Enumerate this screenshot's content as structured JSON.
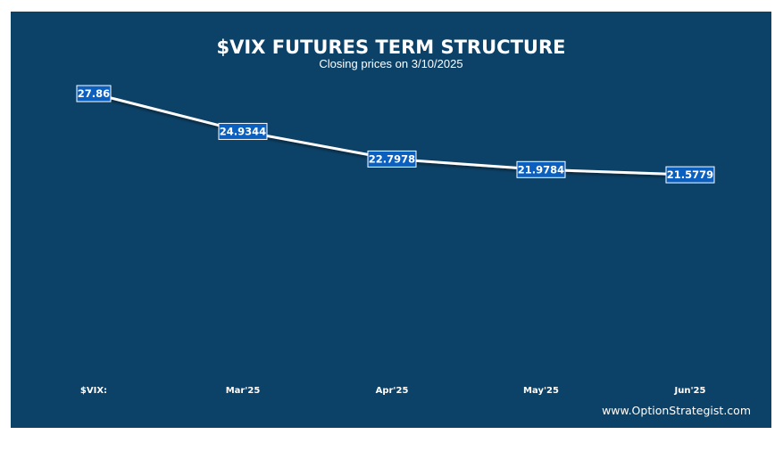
{
  "chart_data": {
    "type": "line",
    "title": "$VIX FUTURES TERM STRUCTURE",
    "subtitle": "Closing prices on 3/10/2025",
    "categories": [
      "$VIX:",
      "Mar'25",
      "Apr'25",
      "May'25",
      "Jun'25"
    ],
    "series": [
      {
        "values": [
          27.86,
          24.9344,
          22.7978,
          21.9784,
          21.5779
        ],
        "value_labels": [
          "27.86",
          "24.9344",
          "22.7978",
          "21.9784",
          "21.5779"
        ]
      }
    ],
    "data_labels": true,
    "grid": false,
    "legend": "none",
    "drop_lines": true
  },
  "footer": {
    "website": "www.OptionStrategist.com"
  },
  "colors": {
    "background": "#0d4268",
    "line": "#ffffff",
    "label_box": "#0a5fbf",
    "text": "#ffffff"
  }
}
